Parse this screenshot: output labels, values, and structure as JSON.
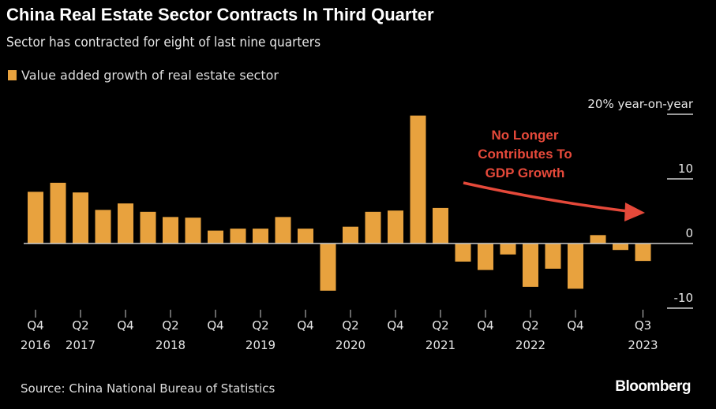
{
  "header": {
    "title": "China Real Estate Sector Contracts In Third Quarter",
    "subtitle": "Sector has contracted for eight of last nine quarters"
  },
  "footer": {
    "source": "Source: China National Bureau of Statistics",
    "brand": "Bloomberg"
  },
  "colors": {
    "bar": "#E8A23E",
    "annotation": "#E5493A",
    "background": "#000000"
  },
  "chart_data": {
    "type": "bar",
    "title": "China Real Estate Sector Contracts In Third Quarter",
    "legend": [
      "Value added growth of real estate sector"
    ],
    "ylabel": "20% year-on-year",
    "ylim": [
      -10,
      20
    ],
    "yticks": [
      {
        "value": 20,
        "label": "20% year-on-year"
      },
      {
        "value": 10,
        "label": "10"
      },
      {
        "value": 0,
        "label": "0"
      },
      {
        "value": -10,
        "label": "-10"
      }
    ],
    "categories": [
      "Q4 2016",
      "Q1 2017",
      "Q2 2017",
      "Q3 2017",
      "Q4 2017",
      "Q1 2018",
      "Q2 2018",
      "Q3 2018",
      "Q4 2018",
      "Q1 2019",
      "Q2 2019",
      "Q3 2019",
      "Q4 2019",
      "Q1 2020",
      "Q2 2020",
      "Q3 2020",
      "Q4 2020",
      "Q1 2021",
      "Q2 2021",
      "Q3 2021",
      "Q4 2021",
      "Q1 2022",
      "Q2 2022",
      "Q3 2022",
      "Q4 2022",
      "Q1 2023",
      "Q2 2023",
      "Q3 2023"
    ],
    "values": [
      8.0,
      9.4,
      7.9,
      5.2,
      6.2,
      4.9,
      4.1,
      4.0,
      2.0,
      2.3,
      2.3,
      4.1,
      2.3,
      -7.3,
      2.6,
      4.9,
      5.1,
      19.8,
      5.5,
      -2.8,
      -4.1,
      -1.7,
      -6.7,
      -3.9,
      -7.0,
      1.3,
      -1.0,
      -2.7
    ],
    "xticks": [
      {
        "index": 0,
        "q": "Q4",
        "year": "2016"
      },
      {
        "index": 2,
        "q": "Q2",
        "year": "2017"
      },
      {
        "index": 4,
        "q": "Q4",
        "year": ""
      },
      {
        "index": 6,
        "q": "Q2",
        "year": "2018"
      },
      {
        "index": 8,
        "q": "Q4",
        "year": ""
      },
      {
        "index": 10,
        "q": "Q2",
        "year": "2019"
      },
      {
        "index": 12,
        "q": "Q4",
        "year": ""
      },
      {
        "index": 14,
        "q": "Q2",
        "year": "2020"
      },
      {
        "index": 16,
        "q": "Q4",
        "year": ""
      },
      {
        "index": 18,
        "q": "Q2",
        "year": "2021"
      },
      {
        "index": 20,
        "q": "Q4",
        "year": ""
      },
      {
        "index": 22,
        "q": "Q2",
        "year": "2022"
      },
      {
        "index": 24,
        "q": "Q4",
        "year": ""
      },
      {
        "index": 27,
        "q": "Q3",
        "year": "2023"
      }
    ],
    "annotation": {
      "lines": [
        "No Longer",
        "Contributes To",
        "GDP Growth"
      ]
    }
  }
}
